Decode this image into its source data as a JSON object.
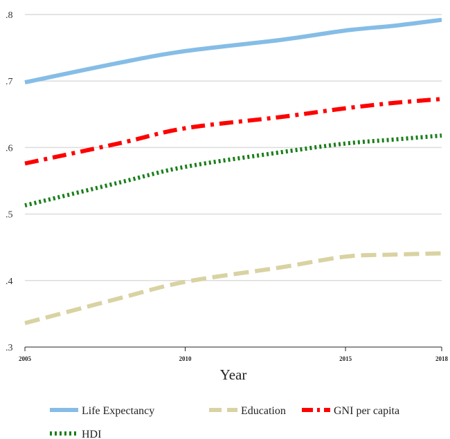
{
  "chart_data": {
    "type": "line",
    "xlabel": "Year",
    "ylabel": "",
    "x": [
      2005,
      2010,
      2015,
      2018
    ],
    "x_ticks": [
      "2005",
      "2010",
      "2015",
      "2018"
    ],
    "y_ticks": [
      ".3",
      ".4",
      ".5",
      ".6",
      ".7",
      ".8"
    ],
    "y_tick_values": [
      0.3,
      0.4,
      0.5,
      0.6,
      0.7,
      0.8
    ],
    "xlim": [
      2005,
      2018
    ],
    "ylim": [
      0.3,
      0.8
    ],
    "grid": "horizontal",
    "legend_position": "bottom",
    "series": [
      {
        "name": "Life Expectancy",
        "color": "#85bde6",
        "style": "solid",
        "x": [
          2005,
          2008,
          2010,
          2013,
          2015,
          2016.5,
          2018
        ],
        "values": [
          0.698,
          0.728,
          0.745,
          0.762,
          0.776,
          0.783,
          0.792
        ]
      },
      {
        "name": "Education",
        "color": "#d9d2a2",
        "style": "dash",
        "x": [
          2005,
          2008,
          2010,
          2013,
          2015,
          2016.5,
          2018
        ],
        "values": [
          0.336,
          0.374,
          0.398,
          0.42,
          0.436,
          0.439,
          0.441
        ]
      },
      {
        "name": "GNI per capita",
        "color": "#ff0000",
        "style": "dashdot",
        "x": [
          2005,
          2008,
          2010,
          2013,
          2015,
          2016.5,
          2018
        ],
        "values": [
          0.576,
          0.607,
          0.629,
          0.646,
          0.659,
          0.667,
          0.673
        ]
      },
      {
        "name": "HDI",
        "color": "#1a7f1a",
        "style": "dot",
        "x": [
          2005,
          2008,
          2010,
          2013,
          2015,
          2016.5,
          2018
        ],
        "values": [
          0.513,
          0.548,
          0.571,
          0.593,
          0.606,
          0.612,
          0.618
        ]
      }
    ]
  }
}
